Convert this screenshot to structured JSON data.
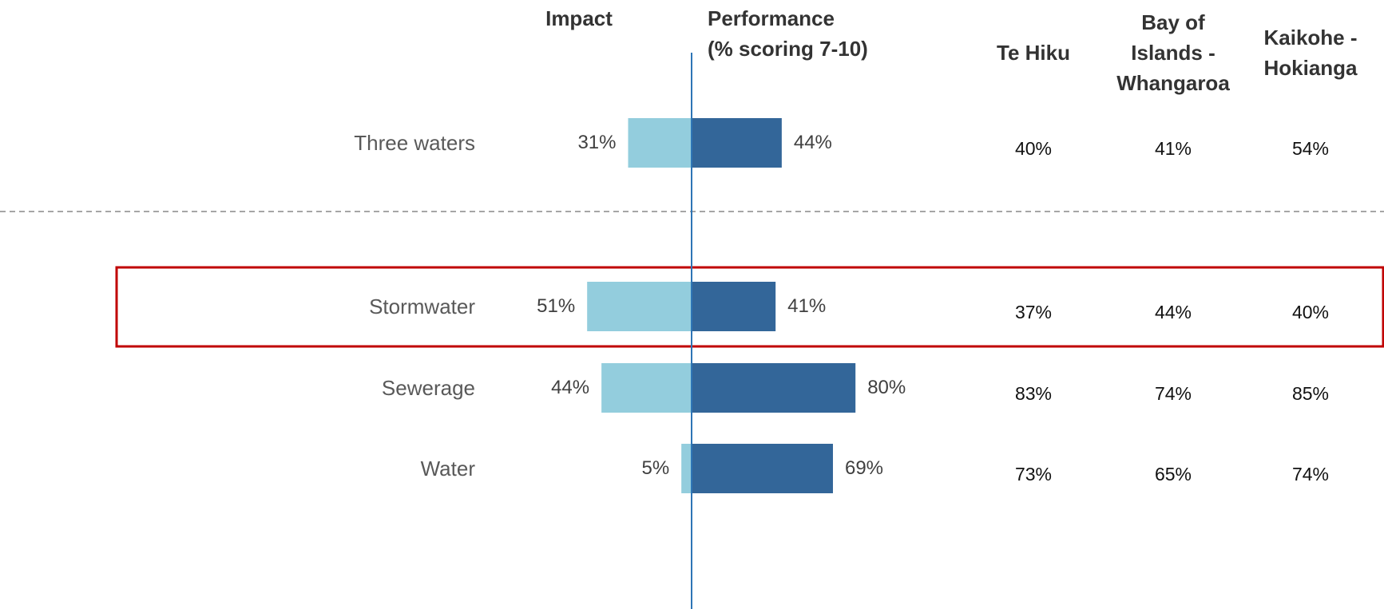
{
  "chart_data": {
    "type": "bar",
    "categories": [
      "Three waters",
      "Stormwater",
      "Sewerage",
      "Water"
    ],
    "series": [
      {
        "name": "Impact",
        "color": "#93cddd",
        "values": [
          31,
          51,
          44,
          5
        ],
        "value_labels": [
          "31%",
          "51%",
          "44%",
          "5%"
        ]
      },
      {
        "name": "Performance\n(% scoring 7-10)",
        "color": "#336699",
        "values": [
          44,
          41,
          80,
          69
        ],
        "value_labels": [
          "44%",
          "41%",
          "80%",
          "69%"
        ]
      }
    ]
  },
  "table": {
    "columns": [
      "Te Hiku",
      "Bay of\nIslands -\nWhangaroa",
      "Kaikohe -\nHokianga"
    ],
    "rows": [
      [
        "40%",
        "41%",
        "54%"
      ],
      [
        "37%",
        "44%",
        "40%"
      ],
      [
        "83%",
        "74%",
        "85%"
      ],
      [
        "73%",
        "65%",
        "74%"
      ]
    ]
  }
}
